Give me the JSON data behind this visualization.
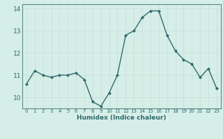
{
  "x": [
    0,
    1,
    2,
    3,
    4,
    5,
    6,
    7,
    8,
    9,
    10,
    11,
    12,
    13,
    14,
    15,
    16,
    17,
    18,
    19,
    20,
    21,
    22,
    23
  ],
  "y": [
    10.6,
    11.2,
    11.0,
    10.9,
    11.0,
    11.0,
    11.1,
    10.8,
    9.8,
    9.6,
    10.2,
    11.0,
    12.8,
    13.0,
    13.6,
    13.9,
    13.9,
    12.8,
    12.1,
    11.7,
    11.5,
    10.9,
    11.3,
    10.4
  ],
  "xlabel": "Humidex (Indice chaleur)",
  "ylim": [
    9.5,
    14.2
  ],
  "xlim": [
    -0.5,
    23.5
  ],
  "yticks": [
    10,
    11,
    12,
    13,
    14
  ],
  "xticks": [
    0,
    1,
    2,
    3,
    4,
    5,
    6,
    7,
    8,
    9,
    10,
    11,
    12,
    13,
    14,
    15,
    16,
    17,
    18,
    19,
    20,
    21,
    22,
    23
  ],
  "line_color": "#2e6b6b",
  "marker_color": "#2e6b6b",
  "bg_color": "#d6eee8",
  "grid_color": "#c8ddd6",
  "axis_color": "#5a8a8a",
  "tick_color": "#2e6b6b",
  "label_color": "#2e6b6b"
}
